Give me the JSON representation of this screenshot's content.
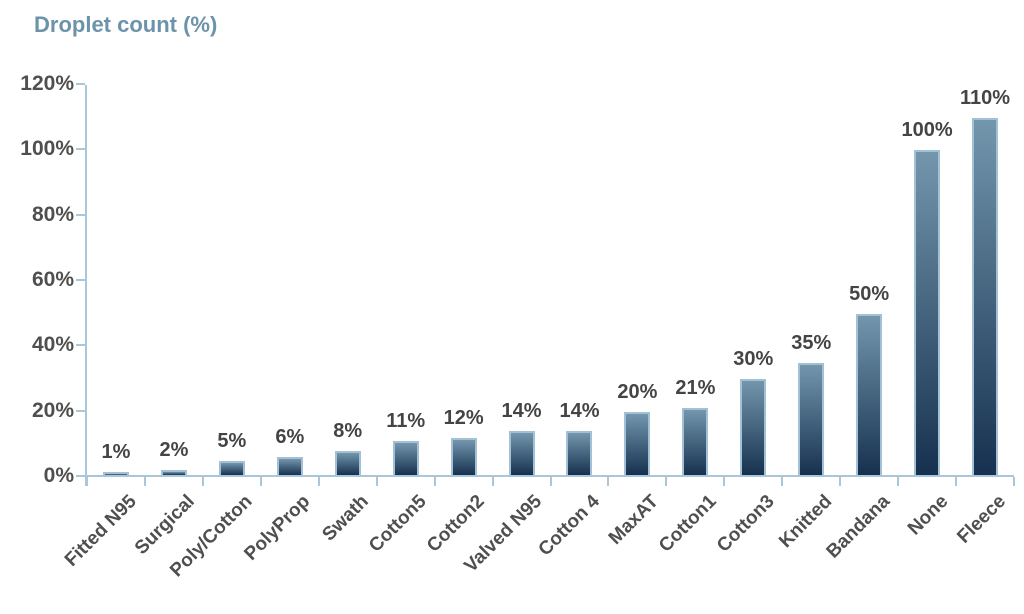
{
  "title": "Droplet count (%)",
  "colors": {
    "title": "#6b93aa",
    "axis": "#a9c6da",
    "tick_label": "#4f4f4f",
    "data_label": "#444444",
    "bar_gradient_top": "#7396ad",
    "bar_gradient_bottom": "#16314f",
    "bar_border": "#a3c1d4",
    "background": "#ffffff"
  },
  "chart_data": {
    "type": "bar",
    "title": "Droplet count (%)",
    "categories": [
      "Fitted N95",
      "Surgical",
      "Poly/Cotton",
      "PolyProp",
      "Swath",
      "Cotton5",
      "Cotton2",
      "Valved N95",
      "Cotton 4",
      "MaxAT",
      "Cotton1",
      "Cotton3",
      "Knitted",
      "Bandana",
      "None",
      "Fleece"
    ],
    "values": [
      1,
      2,
      5,
      6,
      8,
      11,
      12,
      14,
      14,
      20,
      21,
      30,
      35,
      50,
      100,
      110
    ],
    "data_labels": [
      "1%",
      "2%",
      "5%",
      "6%",
      "8%",
      "11%",
      "12%",
      "14%",
      "14%",
      "20%",
      "21%",
      "30%",
      "35%",
      "50%",
      "100%",
      "110%"
    ],
    "xlabel": "",
    "ylabel": "Droplet count (%)",
    "ylim": [
      0,
      120
    ],
    "ytick_step": 20,
    "ytick_labels": [
      "0%",
      "20%",
      "40%",
      "60%",
      "80%",
      "100%",
      "120%"
    ],
    "grid": false,
    "legend": false,
    "data_label_position": "above-bar",
    "x_label_rotation_deg": 45
  }
}
